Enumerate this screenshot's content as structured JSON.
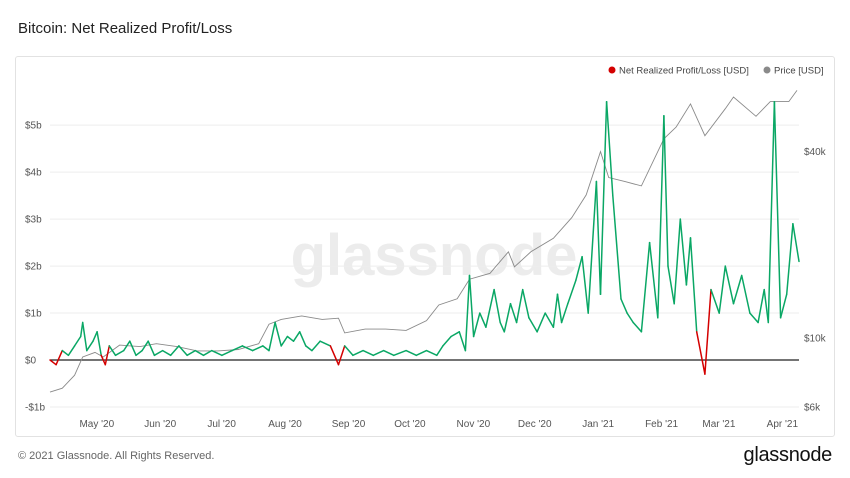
{
  "page": {
    "title": "Bitcoin: Net Realized Profit/Loss",
    "copyright": "© 2021 Glassnode. All Rights Reserved.",
    "logo": "glassnode",
    "watermark": "glassnode"
  },
  "chart_data": {
    "type": "line",
    "title": "Bitcoin: Net Realized Profit/Loss",
    "legend_position": "top-right",
    "grid": true,
    "x_range": [
      "2020-04-14",
      "2021-04-15"
    ],
    "x_ticks": [
      "May '20",
      "Jun '20",
      "Jul '20",
      "Aug '20",
      "Sep '20",
      "Oct '20",
      "Nov '20",
      "Dec '20",
      "Jan '21",
      "Feb '21",
      "Mar '21",
      "Apr '21"
    ],
    "y_left": {
      "ylim": [
        -1.0,
        5.6
      ],
      "ticks": [
        -1,
        0,
        1,
        2,
        3,
        4,
        5
      ],
      "tick_labels": [
        "-$1b",
        "$0",
        "$1b",
        "$2b",
        "$3b",
        "$4b",
        "$5b"
      ],
      "unit": "USD billions"
    },
    "y_right": {
      "scale": "log",
      "ylim": [
        6000,
        60000
      ],
      "ticks": [
        6000,
        10000,
        40000
      ],
      "tick_labels": [
        "$6k",
        "$10k",
        "$40k"
      ],
      "unit": "USD"
    },
    "series": [
      {
        "name": "Net Realized Profit/Loss [USD]",
        "axis": "left",
        "color_positive": "#0aa765",
        "color_negative": "#d40000",
        "x": [
          "2020-04-14",
          "2020-04-17",
          "2020-04-20",
          "2020-04-23",
          "2020-04-26",
          "2020-04-29",
          "2020-04-30",
          "2020-05-02",
          "2020-05-05",
          "2020-05-07",
          "2020-05-09",
          "2020-05-11",
          "2020-05-13",
          "2020-05-16",
          "2020-05-20",
          "2020-05-23",
          "2020-05-26",
          "2020-05-29",
          "2020-06-01",
          "2020-06-04",
          "2020-06-08",
          "2020-06-12",
          "2020-06-16",
          "2020-06-20",
          "2020-06-24",
          "2020-06-28",
          "2020-07-02",
          "2020-07-07",
          "2020-07-12",
          "2020-07-17",
          "2020-07-22",
          "2020-07-27",
          "2020-07-30",
          "2020-08-02",
          "2020-08-05",
          "2020-08-08",
          "2020-08-11",
          "2020-08-14",
          "2020-08-17",
          "2020-08-20",
          "2020-08-24",
          "2020-08-29",
          "2020-09-02",
          "2020-09-05",
          "2020-09-09",
          "2020-09-14",
          "2020-09-19",
          "2020-09-24",
          "2020-09-29",
          "2020-10-05",
          "2020-10-10",
          "2020-10-15",
          "2020-10-20",
          "2020-10-23",
          "2020-10-27",
          "2020-10-31",
          "2020-11-03",
          "2020-11-05",
          "2020-11-07",
          "2020-11-10",
          "2020-11-13",
          "2020-11-17",
          "2020-11-20",
          "2020-11-22",
          "2020-11-25",
          "2020-11-28",
          "2020-12-01",
          "2020-12-04",
          "2020-12-08",
          "2020-12-12",
          "2020-12-16",
          "2020-12-18",
          "2020-12-20",
          "2020-12-23",
          "2020-12-27",
          "2020-12-30",
          "2021-01-02",
          "2021-01-06",
          "2021-01-08",
          "2021-01-11",
          "2021-01-14",
          "2021-01-18",
          "2021-01-21",
          "2021-01-24",
          "2021-01-28",
          "2021-02-01",
          "2021-02-05",
          "2021-02-08",
          "2021-02-10",
          "2021-02-13",
          "2021-02-16",
          "2021-02-19",
          "2021-02-21",
          "2021-02-24",
          "2021-02-28",
          "2021-03-03",
          "2021-03-07",
          "2021-03-10",
          "2021-03-14",
          "2021-03-18",
          "2021-03-22",
          "2021-03-26",
          "2021-03-29",
          "2021-03-31",
          "2021-04-03",
          "2021-04-06",
          "2021-04-09",
          "2021-04-12",
          "2021-04-15"
        ],
        "values": [
          0,
          -0.1,
          0.2,
          0.1,
          0.3,
          0.5,
          0.8,
          0.2,
          0.4,
          0.6,
          0.1,
          -0.1,
          0.3,
          0.1,
          0.2,
          0.4,
          0.1,
          0.2,
          0.4,
          0.1,
          0.2,
          0.1,
          0.3,
          0.1,
          0.2,
          0.1,
          0.2,
          0.1,
          0.2,
          0.3,
          0.2,
          0.3,
          0.2,
          0.8,
          0.3,
          0.5,
          0.4,
          0.6,
          0.3,
          0.2,
          0.4,
          0.3,
          -0.1,
          0.3,
          0.1,
          0.2,
          0.1,
          0.2,
          0.1,
          0.2,
          0.1,
          0.2,
          0.1,
          0.3,
          0.5,
          0.6,
          0.2,
          1.8,
          0.5,
          1.0,
          0.7,
          1.5,
          0.8,
          0.6,
          1.2,
          0.8,
          1.5,
          0.9,
          0.6,
          1.0,
          0.7,
          1.4,
          0.8,
          1.2,
          1.7,
          2.2,
          1.0,
          3.8,
          1.4,
          5.5,
          3.5,
          1.3,
          1.0,
          0.8,
          0.6,
          2.5,
          0.9,
          5.2,
          2.0,
          1.2,
          3.0,
          1.6,
          2.6,
          0.6,
          -0.3,
          1.5,
          1.0,
          2.0,
          1.2,
          1.8,
          1.0,
          0.8,
          1.5,
          0.8,
          5.5,
          0.9,
          1.4,
          2.9,
          2.1
        ]
      },
      {
        "name": "Price [USD]",
        "axis": "right",
        "color": "#8a8a8a",
        "x": [
          "2020-04-14",
          "2020-04-20",
          "2020-04-26",
          "2020-04-30",
          "2020-05-06",
          "2020-05-10",
          "2020-05-18",
          "2020-05-28",
          "2020-06-05",
          "2020-06-15",
          "2020-06-25",
          "2020-07-05",
          "2020-07-15",
          "2020-07-25",
          "2020-07-30",
          "2020-08-05",
          "2020-08-15",
          "2020-08-25",
          "2020-09-02",
          "2020-09-05",
          "2020-09-15",
          "2020-09-25",
          "2020-10-05",
          "2020-10-15",
          "2020-10-21",
          "2020-10-30",
          "2020-11-05",
          "2020-11-15",
          "2020-11-24",
          "2020-11-27",
          "2020-12-05",
          "2020-12-16",
          "2020-12-25",
          "2021-01-01",
          "2021-01-08",
          "2021-01-12",
          "2021-01-20",
          "2021-01-28",
          "2021-02-08",
          "2021-02-14",
          "2021-02-21",
          "2021-02-28",
          "2021-03-10",
          "2021-03-14",
          "2021-03-25",
          "2021-04-01",
          "2021-04-10",
          "2021-04-14"
        ],
        "values": [
          6700,
          6900,
          7600,
          8700,
          9000,
          8700,
          9500,
          9400,
          9600,
          9400,
          9100,
          9100,
          9200,
          9600,
          11100,
          11500,
          11800,
          11500,
          11600,
          10400,
          10700,
          10700,
          10600,
          11400,
          12800,
          13400,
          15500,
          16200,
          19000,
          17000,
          19000,
          21000,
          24500,
          29000,
          40000,
          33000,
          32000,
          31000,
          44000,
          48000,
          57000,
          45000,
          55000,
          60000,
          52000,
          58000,
          58000,
          63000
        ]
      }
    ]
  }
}
